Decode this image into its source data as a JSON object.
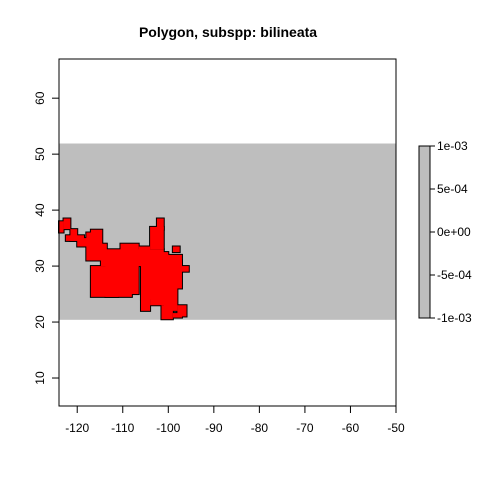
{
  "chart_data": {
    "type": "heatmap",
    "title": "Polygon, subspp: bilineata",
    "xlabel": "",
    "ylabel": "",
    "xlim": [
      -124,
      -50
    ],
    "ylim": [
      5,
      67
    ],
    "x_ticks": [
      "-120",
      "-110",
      "-100",
      "-90",
      "-80",
      "-70",
      "-60",
      "-50"
    ],
    "x_tick_values": [
      -120,
      -110,
      -100,
      -90,
      -80,
      -70,
      -60,
      -50
    ],
    "y_ticks": [
      "10",
      "20",
      "30",
      "40",
      "50",
      "60"
    ],
    "y_tick_values": [
      10,
      20,
      30,
      40,
      50,
      60
    ],
    "raster_extent": {
      "lat_min": 20.4,
      "lat_max": 51.9
    },
    "raster_color": "#bebebe",
    "polygon_fill": "#ff0000",
    "polygon_border": "#000000",
    "polygon_cells": [
      [
        -123.0,
        -121.5,
        36.6,
        38.5
      ],
      [
        -124.0,
        -123.0,
        36.0,
        38.0
      ],
      [
        -121.5,
        -120.0,
        34.5,
        36.6
      ],
      [
        -122.5,
        -118.5,
        34.5,
        35.5
      ],
      [
        -120.0,
        -117.5,
        33.5,
        35.0
      ],
      [
        -118.0,
        -115.0,
        31.0,
        36.0
      ],
      [
        -117.0,
        -114.5,
        31.0,
        36.5
      ],
      [
        -114.8,
        -113.5,
        30.0,
        34.0
      ],
      [
        -113.8,
        -108.0,
        24.5,
        33.0
      ],
      [
        -117.0,
        -111.0,
        24.5,
        30.0
      ],
      [
        -116.0,
        -113.0,
        25.0,
        28.0
      ],
      [
        -110.5,
        -106.5,
        25.0,
        34.0
      ],
      [
        -109.0,
        -105.5,
        30.0,
        33.0
      ],
      [
        -106.0,
        -101.0,
        24.0,
        33.0
      ],
      [
        -104.0,
        -100.0,
        23.0,
        32.5
      ],
      [
        -100.5,
        -97.0,
        26.0,
        32.0
      ],
      [
        -101.0,
        -98.0,
        22.0,
        26.5
      ],
      [
        -97.5,
        -97.0,
        29.0,
        31.0
      ],
      [
        -102.5,
        -101.0,
        36.5,
        38.5
      ],
      [
        -104.0,
        -101.0,
        33.0,
        37.0
      ],
      [
        -106.5,
        -104.0,
        32.0,
        33.5
      ],
      [
        -99.0,
        -97.5,
        32.5,
        33.5
      ],
      [
        -97.0,
        -95.5,
        29.0,
        30.0
      ],
      [
        -98.0,
        -96.0,
        21.0,
        23.0
      ],
      [
        -106.0,
        -104.0,
        22.0,
        24.5
      ],
      [
        -101.5,
        -99.0,
        20.5,
        23.0
      ],
      [
        -99.0,
        -97.0,
        20.8,
        21.6
      ]
    ],
    "legend": {
      "ticks": [
        "1e-03",
        "5e-04",
        "0e+00",
        "-5e-04",
        "-1e-03"
      ],
      "color": "#bebebe"
    }
  }
}
